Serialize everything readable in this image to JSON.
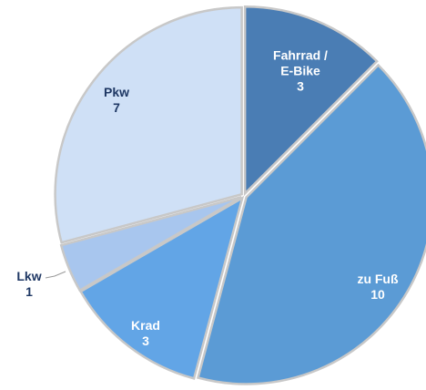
{
  "chart_data": {
    "type": "pie",
    "categories": [
      "Fahrrad / E-Bike",
      "zu Fuß",
      "Krad",
      "Lkw",
      "Pkw"
    ],
    "values": [
      3,
      10,
      3,
      1,
      7
    ],
    "colors": [
      "#4a7db4",
      "#5b9bd5",
      "#62a5e6",
      "#a8c6ee",
      "#cfe0f6"
    ]
  }
}
